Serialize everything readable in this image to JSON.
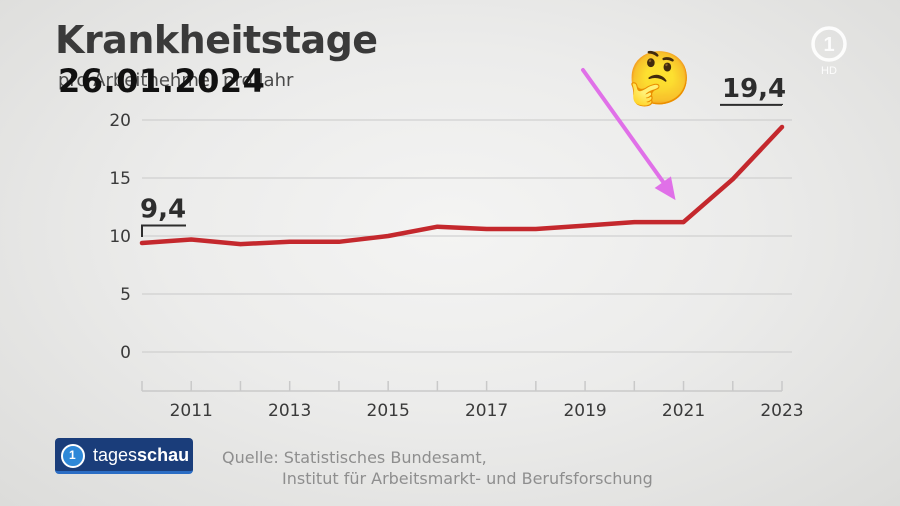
{
  "header": {
    "title": "Krankheitstage",
    "subtitle": "pro Arbeitnehmer pro Jahr",
    "date_overlay": "26.01.2024"
  },
  "emoji": "🤔",
  "branding": {
    "channel_logo_icon": "ard-1-hd-logo-icon",
    "hd_label": "HD",
    "brand_name_light": "tages",
    "brand_name_bold": "schau",
    "brand_logo_number": "1"
  },
  "source": {
    "line1": "Quelle: Statistisches Bundesamt,",
    "line2": "Institut für Arbeitsmarkt- und Berufsforschung"
  },
  "colors": {
    "line": "#c4282d",
    "arrow": "#e070e8",
    "grid": "#c9c9c9",
    "text": "#3a3a3a"
  },
  "chart_data": {
    "type": "line",
    "title": "Krankheitstage",
    "subtitle": "pro Arbeitnehmer pro Jahr",
    "x": [
      2010,
      2011,
      2012,
      2013,
      2014,
      2015,
      2016,
      2017,
      2018,
      2019,
      2020,
      2021,
      2022,
      2023
    ],
    "series": [
      {
        "values": [
          9.4,
          9.7,
          9.3,
          9.5,
          9.5,
          10.0,
          10.8,
          10.6,
          10.6,
          10.9,
          11.2,
          11.2,
          14.9,
          19.4
        ]
      }
    ],
    "x_tick_labels": [
      "2011",
      "2013",
      "2015",
      "2017",
      "2019",
      "2021",
      "2023"
    ],
    "y_ticks": [
      0,
      5,
      10,
      15,
      20
    ],
    "ylim": [
      -2.5,
      21
    ],
    "grid": true,
    "annotations": [
      {
        "x": 2010,
        "y": 9.4,
        "label": "9,4"
      },
      {
        "x": 2023,
        "y": 19.4,
        "label": "19,4"
      }
    ],
    "arrow_annotation": {
      "points_to_year": 2021
    }
  }
}
